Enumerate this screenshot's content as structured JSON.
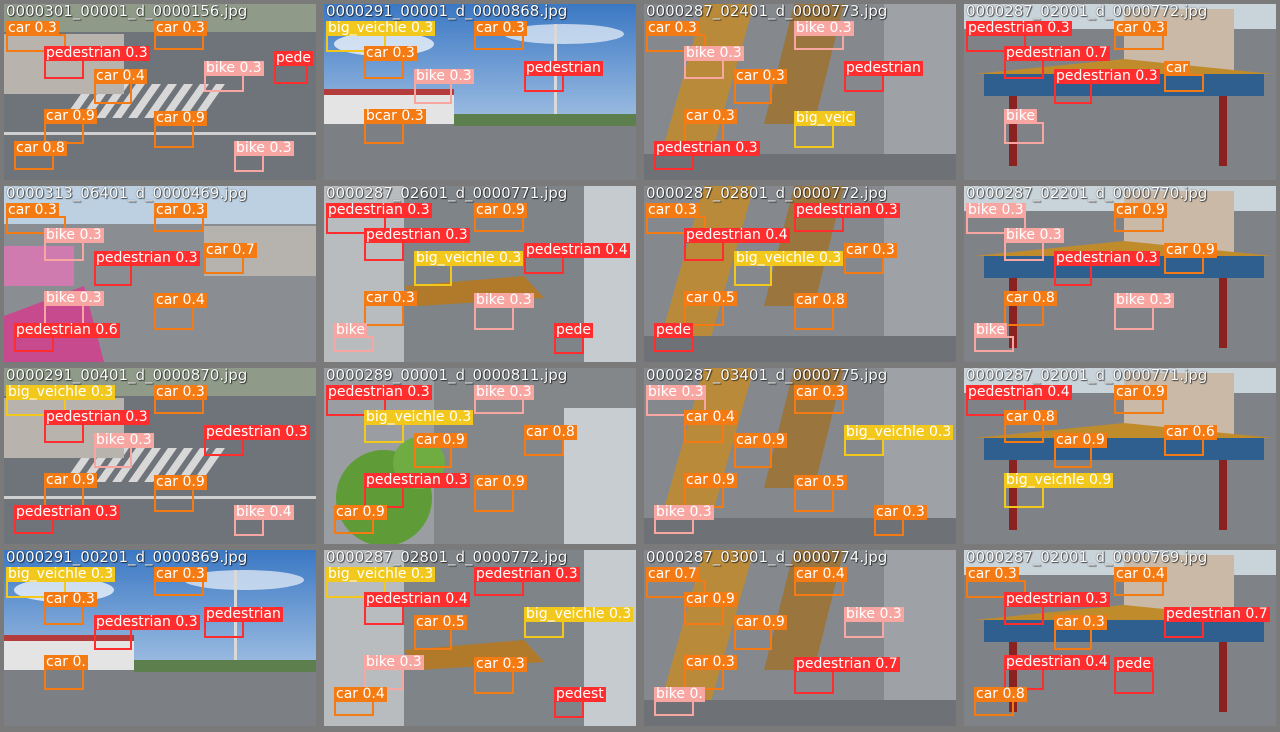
{
  "colors": {
    "car": "#f47a14",
    "bike": "#f8a6a2",
    "pedestrian": "#ff2d2d",
    "big_veichle": "#f2c81c",
    "frame": "#8a8a8a"
  },
  "tiles": [
    {
      "filename": "0000301_00001_d_0000156.jpg",
      "scene": "street-left",
      "dets": [
        {
          "label": "car 0.3",
          "cls": "car"
        },
        {
          "label": "car 0.3",
          "cls": "car"
        },
        {
          "label": "pedestrian 0.3",
          "cls": "pedestrian"
        },
        {
          "label": "car 0.4",
          "cls": "car"
        },
        {
          "label": "bike 0.3",
          "cls": "bike"
        },
        {
          "label": "car 0.9",
          "cls": "car"
        },
        {
          "label": "car 0.9",
          "cls": "car"
        },
        {
          "label": "car 0.8",
          "cls": "car"
        },
        {
          "label": "bike 0.3",
          "cls": "bike"
        },
        {
          "label": "pede",
          "cls": "pedestrian"
        }
      ]
    },
    {
      "filename": "0000291_00001_d_0000868.jpg",
      "scene": "sky-building",
      "dets": [
        {
          "label": "big_veichle 0.3",
          "cls": "big_veichle"
        },
        {
          "label": "car 0.3",
          "cls": "car"
        },
        {
          "label": "car 0.3",
          "cls": "car"
        },
        {
          "label": "bike 0.3",
          "cls": "bike"
        },
        {
          "label": "pedestrian",
          "cls": "pedestrian"
        },
        {
          "label": "bcar 0.3",
          "cls": "car"
        }
      ]
    },
    {
      "filename": "0000287_02401_d_0000773.jpg",
      "scene": "gate-top",
      "dets": [
        {
          "label": "car 0.3",
          "cls": "car"
        },
        {
          "label": "bike 0.3",
          "cls": "bike"
        },
        {
          "label": "bike 0.3",
          "cls": "bike"
        },
        {
          "label": "car 0.3",
          "cls": "car"
        },
        {
          "label": "pedestrian",
          "cls": "pedestrian"
        },
        {
          "label": "car 0.3",
          "cls": "car"
        },
        {
          "label": "big_veic",
          "cls": "big_veichle"
        },
        {
          "label": "pedestrian 0.3",
          "cls": "pedestrian"
        }
      ]
    },
    {
      "filename": "0000287_02001_d_0000772.jpg",
      "scene": "gate-front",
      "dets": [
        {
          "label": "pedestrian 0.3",
          "cls": "pedestrian"
        },
        {
          "label": "car 0.3",
          "cls": "car"
        },
        {
          "label": "pedestrian 0.7",
          "cls": "pedestrian"
        },
        {
          "label": "pedestrian 0.3",
          "cls": "pedestrian"
        },
        {
          "label": "car",
          "cls": "car"
        },
        {
          "label": "bike",
          "cls": "bike"
        }
      ]
    },
    {
      "filename": "0000313_06401_d_0000469.jpg",
      "scene": "city-wide",
      "dets": [
        {
          "label": "car 0.3",
          "cls": "car"
        },
        {
          "label": "car 0.3",
          "cls": "car"
        },
        {
          "label": "bike 0.3",
          "cls": "bike"
        },
        {
          "label": "pedestrian 0.3",
          "cls": "pedestrian"
        },
        {
          "label": "car 0.7",
          "cls": "car"
        },
        {
          "label": "bike 0.3",
          "cls": "bike"
        },
        {
          "label": "car 0.4",
          "cls": "car"
        },
        {
          "label": "pedestrian 0.6",
          "cls": "pedestrian"
        }
      ]
    },
    {
      "filename": "0000287_02601_d_0000771.jpg",
      "scene": "gate-road",
      "dets": [
        {
          "label": "pedestrian 0.3",
          "cls": "pedestrian"
        },
        {
          "label": "car 0.9",
          "cls": "car"
        },
        {
          "label": "pedestrian 0.3",
          "cls": "pedestrian"
        },
        {
          "label": "big_veichle 0.3",
          "cls": "big_veichle"
        },
        {
          "label": "pedestrian 0.4",
          "cls": "pedestrian"
        },
        {
          "label": "car 0.3",
          "cls": "car"
        },
        {
          "label": "bike 0.3",
          "cls": "bike"
        },
        {
          "label": "bike",
          "cls": "bike"
        },
        {
          "label": "pede",
          "cls": "pedestrian"
        }
      ]
    },
    {
      "filename": "0000287_02801_d_0000772.jpg",
      "scene": "gate-top",
      "dets": [
        {
          "label": "car 0.3",
          "cls": "car"
        },
        {
          "label": "pedestrian 0.3",
          "cls": "pedestrian"
        },
        {
          "label": "pedestrian 0.4",
          "cls": "pedestrian"
        },
        {
          "label": "big_veichle 0.3",
          "cls": "big_veichle"
        },
        {
          "label": "car 0.3",
          "cls": "car"
        },
        {
          "label": "car 0.5",
          "cls": "car"
        },
        {
          "label": "car 0.8",
          "cls": "car"
        },
        {
          "label": "pede",
          "cls": "pedestrian"
        }
      ]
    },
    {
      "filename": "0000287_02201_d_0000770.jpg",
      "scene": "gate-front",
      "dets": [
        {
          "label": "bike 0.3",
          "cls": "bike"
        },
        {
          "label": "car 0.9",
          "cls": "car"
        },
        {
          "label": "bike 0.3",
          "cls": "bike"
        },
        {
          "label": "pedestrian 0.3",
          "cls": "pedestrian"
        },
        {
          "label": "car 0.9",
          "cls": "car"
        },
        {
          "label": "car 0.8",
          "cls": "car"
        },
        {
          "label": "bike 0.3",
          "cls": "bike"
        },
        {
          "label": "bike",
          "cls": "bike"
        }
      ]
    },
    {
      "filename": "0000291_00401_d_0000870.jpg",
      "scene": "street-left",
      "dets": [
        {
          "label": "big_veichle 0.3",
          "cls": "big_veichle"
        },
        {
          "label": "car 0.3",
          "cls": "car"
        },
        {
          "label": "pedestrian 0.3",
          "cls": "pedestrian"
        },
        {
          "label": "bike 0.3",
          "cls": "bike"
        },
        {
          "label": "pedestrian 0.3",
          "cls": "pedestrian"
        },
        {
          "label": "car 0.9",
          "cls": "car"
        },
        {
          "label": "car 0.9",
          "cls": "car"
        },
        {
          "label": "pedestrian 0.3",
          "cls": "pedestrian"
        },
        {
          "label": "bike 0.4",
          "cls": "bike"
        }
      ]
    },
    {
      "filename": "0000289_00001_d_0000811.jpg",
      "scene": "trees-road",
      "dets": [
        {
          "label": "pedestrian 0.3",
          "cls": "pedestrian"
        },
        {
          "label": "bike 0.3",
          "cls": "bike"
        },
        {
          "label": "big_veichle 0.3",
          "cls": "big_veichle"
        },
        {
          "label": "car 0.9",
          "cls": "car"
        },
        {
          "label": "car 0.8",
          "cls": "car"
        },
        {
          "label": "pedestrian 0.3",
          "cls": "pedestrian"
        },
        {
          "label": "car 0.9",
          "cls": "car"
        },
        {
          "label": "car 0.9",
          "cls": "car"
        }
      ]
    },
    {
      "filename": "0000287_03401_d_0000775.jpg",
      "scene": "gate-top",
      "dets": [
        {
          "label": "bike 0.3",
          "cls": "bike"
        },
        {
          "label": "car 0.3",
          "cls": "car"
        },
        {
          "label": "car 0.4",
          "cls": "car"
        },
        {
          "label": "car 0.9",
          "cls": "car"
        },
        {
          "label": "big_veichle 0.3",
          "cls": "big_veichle"
        },
        {
          "label": "car 0.9",
          "cls": "car"
        },
        {
          "label": "car 0.5",
          "cls": "car"
        },
        {
          "label": "bike 0.3",
          "cls": "bike"
        },
        {
          "label": "car 0.3",
          "cls": "car"
        }
      ]
    },
    {
      "filename": "0000287_02001_d_0000771.jpg",
      "scene": "gate-front",
      "dets": [
        {
          "label": "pedestrian 0.4",
          "cls": "pedestrian"
        },
        {
          "label": "car 0.9",
          "cls": "car"
        },
        {
          "label": "car 0.8",
          "cls": "car"
        },
        {
          "label": "car 0.9",
          "cls": "car"
        },
        {
          "label": "car 0.6",
          "cls": "car"
        },
        {
          "label": "big_veichle 0.9",
          "cls": "big_veichle"
        }
      ]
    },
    {
      "filename": "0000291_00201_d_0000869.jpg",
      "scene": "sky-building",
      "dets": [
        {
          "label": "big_veichle 0.3",
          "cls": "big_veichle"
        },
        {
          "label": "car 0.3",
          "cls": "car"
        },
        {
          "label": "car 0.3",
          "cls": "car"
        },
        {
          "label": "pedestrian 0.3",
          "cls": "pedestrian"
        },
        {
          "label": "pedestrian",
          "cls": "pedestrian"
        },
        {
          "label": "car 0.",
          "cls": "car"
        }
      ]
    },
    {
      "filename": "0000287_02801_d_0000772.jpg",
      "scene": "gate-road",
      "dets": [
        {
          "label": "big_veichle 0.3",
          "cls": "big_veichle"
        },
        {
          "label": "pedestrian 0.3",
          "cls": "pedestrian"
        },
        {
          "label": "pedestrian 0.4",
          "cls": "pedestrian"
        },
        {
          "label": "car 0.5",
          "cls": "car"
        },
        {
          "label": "big_veichle 0.3",
          "cls": "big_veichle"
        },
        {
          "label": "bike 0.3",
          "cls": "bike"
        },
        {
          "label": "car 0.3",
          "cls": "car"
        },
        {
          "label": "car 0.4",
          "cls": "car"
        },
        {
          "label": "pedest",
          "cls": "pedestrian"
        }
      ]
    },
    {
      "filename": "0000287_03001_d_0000774.jpg",
      "scene": "gate-top",
      "dets": [
        {
          "label": "car 0.7",
          "cls": "car"
        },
        {
          "label": "car 0.4",
          "cls": "car"
        },
        {
          "label": "car 0.9",
          "cls": "car"
        },
        {
          "label": "car 0.9",
          "cls": "car"
        },
        {
          "label": "bike 0.3",
          "cls": "bike"
        },
        {
          "label": "car 0.3",
          "cls": "car"
        },
        {
          "label": "pedestrian 0.7",
          "cls": "pedestrian"
        },
        {
          "label": "bike 0.",
          "cls": "bike"
        }
      ]
    },
    {
      "filename": "0000287_02001_d_0000769.jpg",
      "scene": "gate-front",
      "dets": [
        {
          "label": "car 0.3",
          "cls": "car"
        },
        {
          "label": "car 0.4",
          "cls": "car"
        },
        {
          "label": "pedestrian 0.3",
          "cls": "pedestrian"
        },
        {
          "label": "car 0.3",
          "cls": "car"
        },
        {
          "label": "pedestrian 0.7",
          "cls": "pedestrian"
        },
        {
          "label": "pedestrian 0.4",
          "cls": "pedestrian"
        },
        {
          "label": "pede",
          "cls": "pedestrian"
        },
        {
          "label": "car 0.8",
          "cls": "car"
        }
      ]
    }
  ]
}
